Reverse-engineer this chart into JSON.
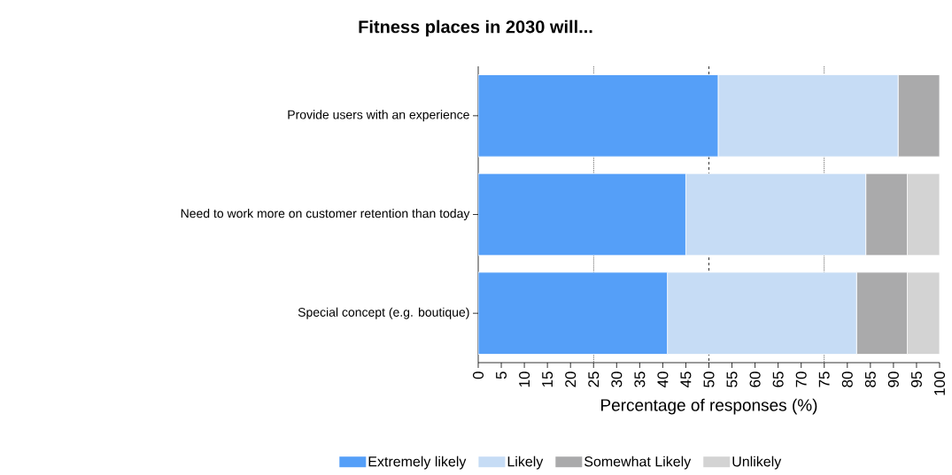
{
  "chart_data": {
    "type": "bar",
    "orientation": "horizontal",
    "stacked": true,
    "title": "Fitness places in 2030 will...",
    "xlabel": "Percentage of responses (%)",
    "categories": [
      "Provide users with an experience",
      "Need to work more on customer retention than today",
      "Special concept (e.g. boutique)"
    ],
    "series": [
      {
        "name": "Extremely likely",
        "color": "#559ff8",
        "values": [
          52,
          45,
          41
        ]
      },
      {
        "name": "Likely",
        "color": "#c6dcf5",
        "values": [
          39,
          39,
          41
        ]
      },
      {
        "name": "Somewhat Likely",
        "color": "#aaaaab",
        "values": [
          9,
          9,
          11
        ]
      },
      {
        "name": "Unlikely",
        "color": "#d3d3d3",
        "values": [
          0,
          7,
          7
        ]
      }
    ],
    "xlim": [
      0,
      100
    ],
    "xticks": [
      0,
      5,
      10,
      15,
      20,
      25,
      30,
      35,
      40,
      45,
      50,
      55,
      60,
      65,
      70,
      75,
      80,
      85,
      90,
      95,
      100
    ],
    "ref_lines": [
      {
        "axis": "x",
        "value": 25,
        "line_style": "dotted"
      },
      {
        "axis": "x",
        "value": 50,
        "line_style": "dashed"
      },
      {
        "axis": "x",
        "value": 75,
        "line_style": "dotted"
      }
    ],
    "grid": false,
    "legend": "bottom"
  }
}
